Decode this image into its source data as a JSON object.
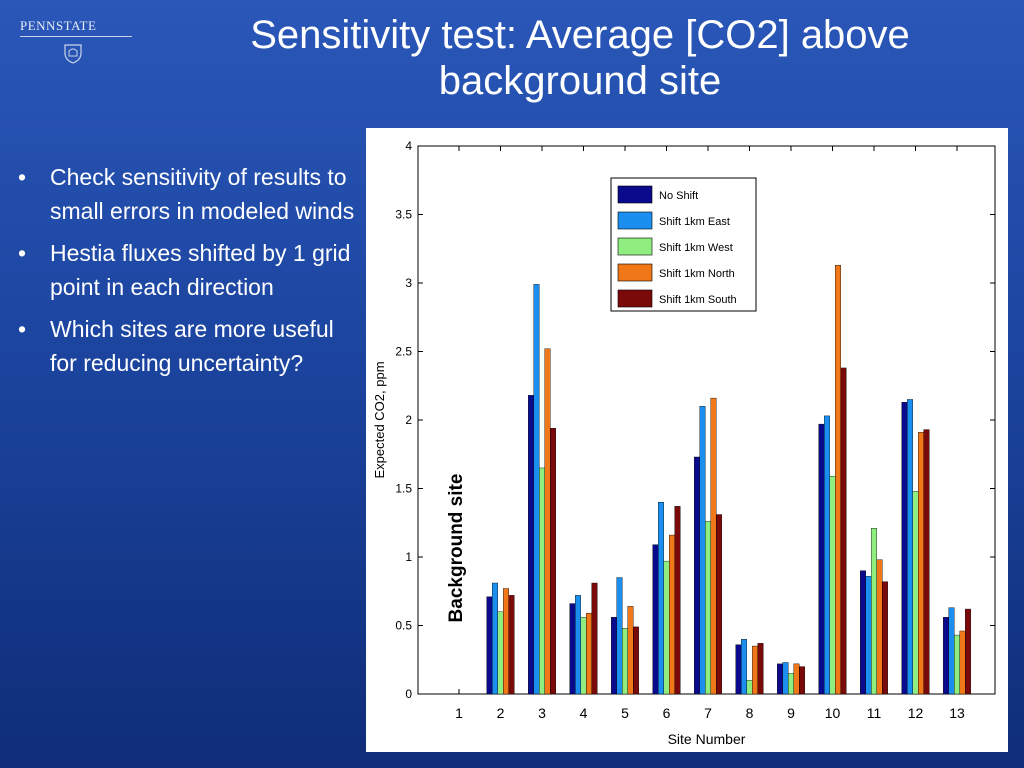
{
  "logo": {
    "text": "PENNSTATE"
  },
  "slide": {
    "title_line1": "Sensitivity test:  Average [CO2] above",
    "title_line2": "background site",
    "bullets": [
      "Check sensitivity of results to small errors in modeled winds",
      "Hestia fluxes shifted by 1 grid point in each direction",
      "Which sites are more useful for reducing uncertainty?"
    ],
    "bullet_glyph": "•"
  },
  "chart_data": {
    "type": "bar",
    "xlabel": "Site Number",
    "ylabel": "Expected CO2, ppm",
    "ylim": [
      0,
      4
    ],
    "yticks": [
      "0",
      "0.5",
      "1",
      "1.5",
      "2",
      "2.5",
      "3",
      "3.5",
      "4"
    ],
    "categories": [
      "1",
      "2",
      "3",
      "4",
      "5",
      "6",
      "7",
      "8",
      "9",
      "10",
      "11",
      "12",
      "13"
    ],
    "annotation": "Background site",
    "legend_position": "top-center",
    "grid": false,
    "series": [
      {
        "name": "No Shift",
        "color": "#0a0a8c",
        "values": [
          null,
          0.71,
          2.18,
          0.66,
          0.56,
          1.09,
          1.73,
          0.36,
          0.22,
          1.97,
          0.9,
          2.13,
          0.56
        ]
      },
      {
        "name": "Shift 1km East",
        "color": "#1a8ff0",
        "values": [
          null,
          0.81,
          2.99,
          0.72,
          0.85,
          1.4,
          2.1,
          0.4,
          0.23,
          2.03,
          0.86,
          2.15,
          0.63
        ]
      },
      {
        "name": "Shift 1km West",
        "color": "#90ee80",
        "values": [
          null,
          0.6,
          1.65,
          0.56,
          0.48,
          0.97,
          1.26,
          0.1,
          0.15,
          1.59,
          1.21,
          1.48,
          0.43
        ]
      },
      {
        "name": "Shift 1km North",
        "color": "#f07818",
        "values": [
          null,
          0.77,
          2.52,
          0.59,
          0.64,
          1.16,
          2.16,
          0.35,
          0.22,
          3.13,
          0.98,
          1.91,
          0.46
        ]
      },
      {
        "name": "Shift 1km South",
        "color": "#7a0a0a",
        "values": [
          null,
          0.72,
          1.94,
          0.81,
          0.49,
          1.37,
          1.31,
          0.37,
          0.2,
          2.38,
          0.82,
          1.93,
          0.62
        ]
      }
    ]
  }
}
